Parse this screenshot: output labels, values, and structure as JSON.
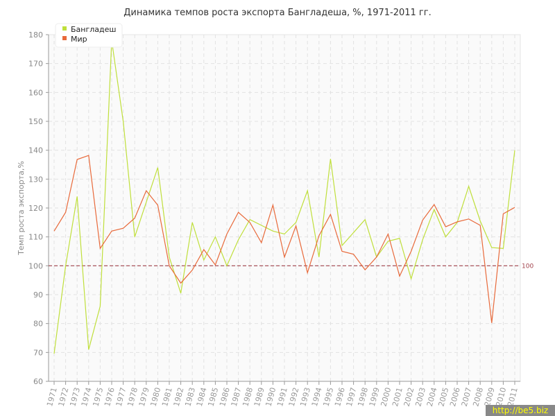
{
  "chart_data": {
    "type": "line",
    "title": "Динамика темпов роста экспорта Бангладеша, %, 1971-2011 гг.",
    "xlabel": "",
    "ylabel": "Темп роста экспорта,%",
    "ylim": [
      60,
      180
    ],
    "yticks": [
      60,
      70,
      80,
      90,
      100,
      110,
      120,
      130,
      140,
      150,
      160,
      170,
      180
    ],
    "grid": true,
    "legend": "top-left",
    "x": [
      1971,
      1972,
      1973,
      1974,
      1975,
      1976,
      1977,
      1978,
      1979,
      1980,
      1981,
      1982,
      1983,
      1984,
      1985,
      1986,
      1987,
      1988,
      1989,
      1990,
      1991,
      1992,
      1993,
      1994,
      1995,
      1996,
      1997,
      1998,
      1999,
      2000,
      2001,
      2002,
      2003,
      2004,
      2005,
      2006,
      2007,
      2008,
      2009,
      2010,
      2011
    ],
    "series": [
      {
        "name": "Бангладеш",
        "color": "#bfdf3a",
        "values": [
          69.6,
          100,
          124,
          71,
          86,
          178,
          150,
          110,
          122,
          134,
          103,
          90.5,
          115,
          102,
          110,
          100,
          109,
          116,
          114,
          112,
          111,
          115,
          126,
          103,
          137,
          107,
          111.5,
          116,
          103,
          108.5,
          109.5,
          95.5,
          109,
          119.5,
          110,
          115,
          127.5,
          115.5,
          106.3,
          106,
          140
        ]
      },
      {
        "name": "Мир",
        "color": "#e8693a",
        "values": [
          112,
          118.5,
          136.8,
          138.2,
          106,
          112,
          113,
          116.5,
          126,
          121,
          100,
          94,
          98.5,
          105.6,
          100.3,
          111,
          118.5,
          115,
          108,
          121,
          103,
          113.8,
          97.6,
          110.4,
          117.8,
          105,
          104,
          98.6,
          103,
          111,
          96.4,
          105,
          115.8,
          121.2,
          113.5,
          115.2,
          116.2,
          114,
          80.2,
          118,
          120.2
        ]
      }
    ],
    "reference_line": {
      "value": 100,
      "label": "100",
      "color": "#a0404a"
    }
  },
  "watermark": "http://be5.biz"
}
